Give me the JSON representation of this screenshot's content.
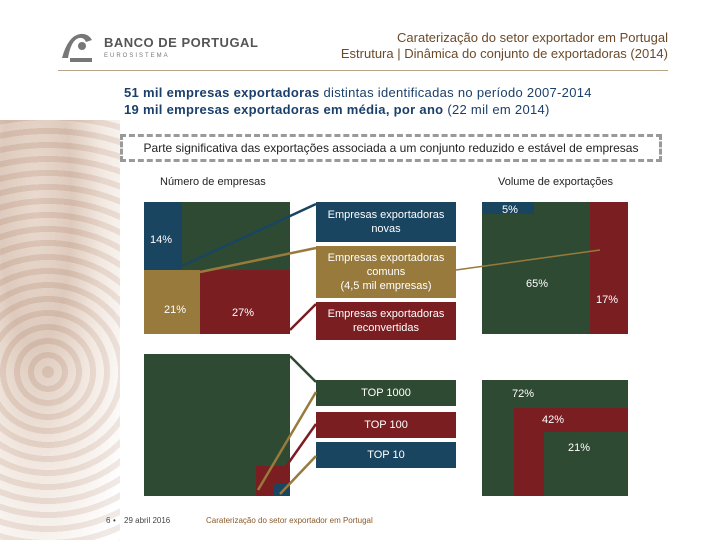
{
  "header": {
    "logo_name": "BANCO DE PORTUGAL",
    "logo_sub": "EUROSISTEMA",
    "title": "Caraterização do setor exportador em Portugal",
    "subtitle_prefix": "Estrutura",
    "subtitle_rest": " | Dinâmica do conjunto de exportadoras (2014)"
  },
  "intro": {
    "line1_bold": "51 mil empresas exportadoras",
    "line1_rest": " distintas identificadas no período 2007-2014",
    "line2_bold": "19 mil empresas exportadoras em média, por ano",
    "line2_rest": " (22 mil em 2014)"
  },
  "callout": "Parte significativa das exportações associada a um conjunto reduzido e estável de empresas",
  "left_title": "Número de empresas",
  "right_title": "Volume de exportações",
  "left_top": {
    "new": "14%",
    "common": "21%",
    "reconv": "27%"
  },
  "right_top": {
    "new": "5%",
    "common": "65%",
    "reconv": "17%"
  },
  "legend": {
    "new": "Empresas exportadoras novas",
    "common_l1": "Empresas exportadoras comuns",
    "common_l2": "(4,5 mil empresas)",
    "reconv": "Empresas exportadoras reconvertidas",
    "top1000": "TOP 1000",
    "top100": "TOP 100",
    "top10": "TOP 10"
  },
  "right_bottom": {
    "top1000": "72%",
    "top100": "42%",
    "top10": "21%"
  },
  "footer": {
    "page": "6",
    "date": "29 abril 2016",
    "caption": "Caraterização do setor exportador em Portugal"
  },
  "colors": {
    "green": "#2f4a32",
    "blue": "#1a4560",
    "gold": "#977a3c",
    "red": "#7a1e22"
  }
}
